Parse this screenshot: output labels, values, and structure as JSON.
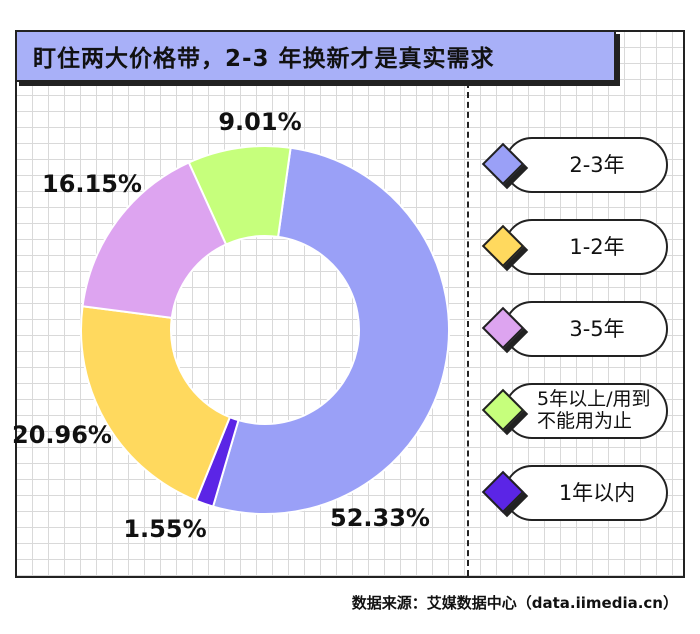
{
  "title": "盯住两大价格带，2-3 年换新才是真实需求",
  "source": "数据来源：艾媒数据中心（data.iimedia.cn）",
  "chart_data": {
    "type": "pie",
    "donut": true,
    "title": "盯住两大价格带，2-3 年换新才是真实需求",
    "slices": [
      {
        "label": "2-3年",
        "value": 52.33,
        "display": "52.33%",
        "color": "#9aa0f7"
      },
      {
        "label": "1年以内",
        "value": 1.55,
        "display": "1.55%",
        "color": "#5b25e6"
      },
      {
        "label": "1-2年",
        "value": 20.96,
        "display": "20.96%",
        "color": "#ffd95e"
      },
      {
        "label": "3-5年",
        "value": 16.15,
        "display": "16.15%",
        "color": "#dda4f0"
      },
      {
        "label": "5年以上/用到不能用为止",
        "value": 9.01,
        "display": "9.01%",
        "color": "#c6ff7c"
      }
    ],
    "legend_placement": "right"
  },
  "legend": [
    {
      "label": "2-3年",
      "color": "#9aa0f7"
    },
    {
      "label": "1-2年",
      "color": "#ffd95e"
    },
    {
      "label": "3-5年",
      "color": "#dda4f0"
    },
    {
      "label": "5年以上/用到不能用为止",
      "color": "#c6ff7c"
    },
    {
      "label": "1年以内",
      "color": "#5b25e6"
    }
  ]
}
